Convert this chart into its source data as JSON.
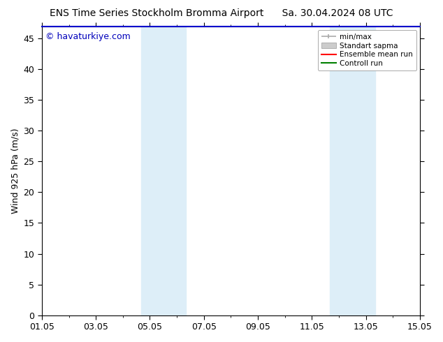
{
  "title": "ENS Time Series Stockholm Bromma Airport      Sa. 30.04.2024 08 UTC",
  "ylabel": "Wind 925 hPa (m/s)",
  "watermark": "© havaturkiye.com",
  "watermark_color": "#0000bb",
  "ylim": [
    0,
    47
  ],
  "yticks": [
    0,
    5,
    10,
    15,
    20,
    25,
    30,
    35,
    40,
    45
  ],
  "xtick_labels": [
    "01.05",
    "03.05",
    "05.05",
    "07.05",
    "09.05",
    "11.05",
    "13.05",
    "15.05"
  ],
  "xtick_positions": [
    0,
    2,
    4,
    6,
    8,
    10,
    12,
    14
  ],
  "x_total_days": 14,
  "shaded_bands": [
    {
      "x_start": 3.67,
      "x_end": 5.33,
      "color": "#ddeef8"
    },
    {
      "x_start": 10.67,
      "x_end": 12.33,
      "color": "#ddeef8"
    }
  ],
  "legend_entries": [
    {
      "label": "min/max",
      "color": "#aaaaaa",
      "style": "minmax"
    },
    {
      "label": "Standart sapma",
      "color": "#cccccc",
      "style": "band"
    },
    {
      "label": "Ensemble mean run",
      "color": "#ff0000",
      "style": "line"
    },
    {
      "label": "Controll run",
      "color": "#008000",
      "style": "line"
    }
  ],
  "background_color": "#ffffff",
  "plot_bg_color": "#ffffff",
  "top_line_color": "#0000cc",
  "font_size": 9,
  "title_font_size": 10,
  "watermark_font_size": 9
}
